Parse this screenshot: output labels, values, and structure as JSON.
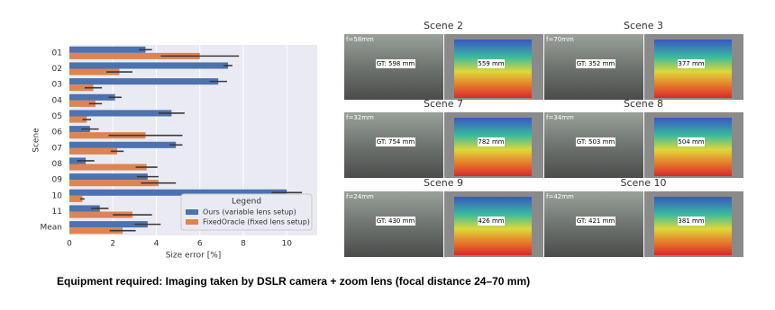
{
  "chart_data": {
    "type": "barh",
    "categories": [
      "01",
      "02",
      "03",
      "04",
      "05",
      "06",
      "07",
      "08",
      "09",
      "10",
      "11",
      "Mean"
    ],
    "series": [
      {
        "name": "Ours (variable lens setup)",
        "color": "#4c72b0",
        "values": [
          3.5,
          7.3,
          6.85,
          2.1,
          4.7,
          0.95,
          4.9,
          0.75,
          3.6,
          10.0,
          1.4,
          3.6
        ],
        "errors": [
          0.3,
          0.2,
          0.4,
          0.3,
          0.6,
          0.4,
          0.3,
          0.4,
          0.5,
          0.7,
          0.4,
          0.6
        ]
      },
      {
        "name": "FixedOracle (fixed lens setup)",
        "color": "#dd8452",
        "values": [
          6.0,
          2.3,
          1.1,
          1.2,
          0.8,
          3.5,
          2.2,
          3.55,
          4.1,
          0.6,
          2.9,
          2.45
        ],
        "errors": [
          1.8,
          0.6,
          0.4,
          0.3,
          0.2,
          1.7,
          0.3,
          0.5,
          0.8,
          0.1,
          0.9,
          0.6
        ]
      }
    ],
    "xlabel": "Size error [%]",
    "ylabel": "Scene",
    "xlim": [
      0,
      11.4
    ],
    "xticks": [
      0,
      2,
      4,
      6,
      8,
      10
    ],
    "grid": true,
    "legend_title": "Legend",
    "legend": "lower right"
  },
  "scenes": [
    {
      "title": "Scene 2",
      "focal": "f=58mm",
      "gt": "GT: 598 mm",
      "estimate": "559 mm"
    },
    {
      "title": "Scene 3",
      "focal": "f=70mm",
      "gt": "GT: 352 mm",
      "estimate": "377 mm"
    },
    {
      "title": "Scene 7",
      "focal": "f=32mm",
      "gt": "GT: 754 mm",
      "estimate": "782 mm"
    },
    {
      "title": "Scene 8",
      "focal": "f=34mm",
      "gt": "GT: 503 mm",
      "estimate": "504 mm"
    },
    {
      "title": "Scene 9",
      "focal": "f=24mm",
      "gt": "GT: 430 mm",
      "estimate": "426 mm"
    },
    {
      "title": "Scene 10",
      "focal": "f=42mm",
      "gt": "GT: 421 mm",
      "estimate": "381 mm"
    }
  ],
  "caption": "Equipment required: Imaging taken by DSLR camera + zoom lens (focal distance 24–70 mm)"
}
